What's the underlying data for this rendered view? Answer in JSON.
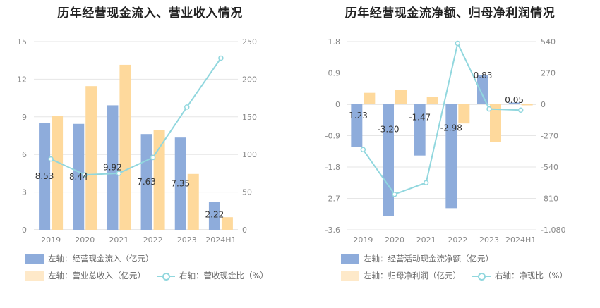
{
  "left": {
    "title": "历年经营现金流入、营业收入情况",
    "legend": {
      "bar1": "左轴：经营现金流入（亿元）",
      "bar2": "左轴：营业总收入（亿元）",
      "line": "右轴：营收现金比（%）"
    }
  },
  "right": {
    "title": "历年经营现金流净额、归母净利润情况",
    "legend": {
      "bar1": "左轴：经营活动现金流净额（亿元）",
      "bar2": "左轴：归母净利润（亿元）",
      "line": "右轴：净现比（%）"
    }
  },
  "colors": {
    "bar1": "#8eacdb",
    "bar2": "#fed99c",
    "line": "#91d7de"
  },
  "chart_data": [
    {
      "type": "bar",
      "title": "历年经营现金流入、营业收入情况",
      "categories": [
        "2019",
        "2020",
        "2021",
        "2022",
        "2023",
        "2024H1"
      ],
      "left_axis": {
        "ticks": [
          "0",
          "3",
          "6",
          "9",
          "12",
          "15"
        ],
        "ylim": [
          0,
          15
        ]
      },
      "right_axis": {
        "ticks": [
          "0",
          "50",
          "100",
          "150",
          "200",
          "250"
        ],
        "ylim": [
          0,
          250
        ]
      },
      "series": [
        {
          "name": "左轴：经营现金流入（亿元）",
          "axis": "left",
          "type": "bar",
          "values": [
            8.53,
            8.44,
            9.92,
            7.63,
            7.35,
            2.22
          ],
          "labels": [
            "8.53",
            "8.44",
            "9.92",
            "7.63",
            "7.35",
            "2.22"
          ]
        },
        {
          "name": "左轴：营业总收入（亿元）",
          "axis": "left",
          "type": "bar",
          "values": [
            9.05,
            11.45,
            13.15,
            7.95,
            4.45,
            1.0
          ]
        },
        {
          "name": "右轴：营收现金比（%）",
          "axis": "right",
          "type": "line",
          "values": [
            94,
            73,
            75,
            96,
            163,
            228
          ]
        }
      ]
    },
    {
      "type": "bar",
      "title": "历年经营现金流净额、归母净利润情况",
      "categories": [
        "2019",
        "2020",
        "2021",
        "2022",
        "2023",
        "2024H1"
      ],
      "left_axis": {
        "ticks": [
          "-3.6",
          "-2.7",
          "-1.8",
          "-0.9",
          "0",
          "0.9",
          "1.8"
        ],
        "ylim": [
          -3.6,
          1.8
        ]
      },
      "right_axis": {
        "ticks": [
          "-1,080",
          "-810",
          "-540",
          "-270",
          "0",
          "270",
          "540"
        ],
        "ylim": [
          -1080,
          540
        ]
      },
      "series": [
        {
          "name": "左轴：经营活动现金流净额（亿元）",
          "axis": "left",
          "type": "bar",
          "values": [
            -1.23,
            -3.2,
            -1.47,
            -2.98,
            0.83,
            0.05
          ],
          "labels": [
            "-1.23",
            "-3.20",
            "-1.47",
            "-2.98",
            "0.83",
            "0.05"
          ]
        },
        {
          "name": "左轴：归母净利润（亿元）",
          "axis": "left",
          "type": "bar",
          "values": [
            0.33,
            0.41,
            0.21,
            -0.55,
            -1.09,
            -0.03
          ]
        },
        {
          "name": "右轴：净现比（%）",
          "axis": "right",
          "type": "line",
          "values": [
            -390,
            -775,
            -675,
            525,
            -40,
            -50
          ]
        }
      ]
    }
  ]
}
